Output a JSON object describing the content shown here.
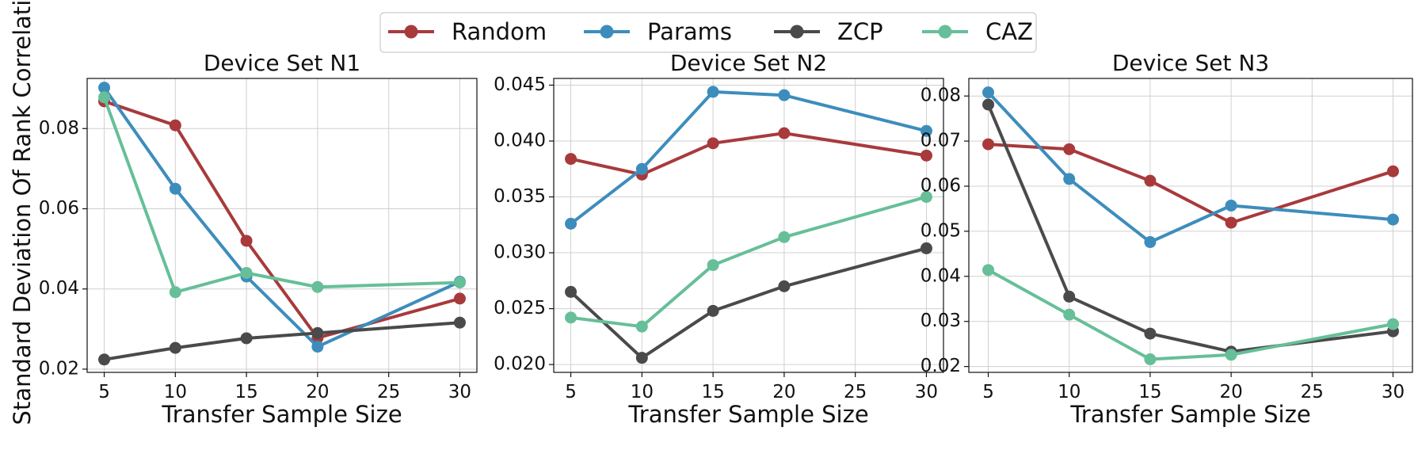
{
  "legend": [
    {
      "name": "Random",
      "color": "#a83a3c"
    },
    {
      "name": "Params",
      "color": "#3d8dbc"
    },
    {
      "name": "ZCP",
      "color": "#4a4a4a"
    },
    {
      "name": "CAZ",
      "color": "#66bf98"
    }
  ],
  "ylabel": "Standard Deviation Of Rank Correlation",
  "chart_data": [
    {
      "type": "line",
      "title": "Device Set N1",
      "xlabel": "Transfer Sample Size",
      "ylabel": "Standard Deviation Of Rank Correlation",
      "x": [
        5,
        10,
        15,
        20,
        30
      ],
      "xlim": [
        3.8,
        31.2
      ],
      "xticks": [
        5,
        10,
        15,
        20,
        25,
        30
      ],
      "ylim": [
        0.0192,
        0.0925
      ],
      "yticks": [
        "0.02",
        "0.04",
        "0.06",
        "0.08"
      ],
      "grid": true,
      "series": [
        {
          "name": "Random",
          "color": "#a83a3c",
          "values": [
            0.0868,
            0.0808,
            0.052,
            0.0278,
            0.0376
          ]
        },
        {
          "name": "Params",
          "color": "#3d8dbc",
          "values": [
            0.0902,
            0.065,
            0.0431,
            0.0256,
            0.0418
          ]
        },
        {
          "name": "ZCP",
          "color": "#4a4a4a",
          "values": [
            0.0224,
            0.0253,
            0.0277,
            0.029,
            0.0316
          ]
        },
        {
          "name": "CAZ",
          "color": "#66bf98",
          "values": [
            0.0878,
            0.0392,
            0.044,
            0.0405,
            0.0416
          ]
        }
      ]
    },
    {
      "type": "line",
      "title": "Device Set N2",
      "xlabel": "Transfer Sample Size",
      "ylabel": "",
      "x": [
        5,
        10,
        15,
        20,
        30
      ],
      "xlim": [
        3.8,
        31.2
      ],
      "xticks": [
        5,
        10,
        15,
        20,
        25,
        30
      ],
      "ylim": [
        0.0193,
        0.0456
      ],
      "yticks": [
        "0.020",
        "0.025",
        "0.030",
        "0.035",
        "0.040",
        "0.045"
      ],
      "grid": true,
      "series": [
        {
          "name": "Random",
          "color": "#a83a3c",
          "values": [
            0.0384,
            0.037,
            0.0398,
            0.0407,
            0.0387
          ]
        },
        {
          "name": "Params",
          "color": "#3d8dbc",
          "values": [
            0.0326,
            0.0375,
            0.0444,
            0.0441,
            0.0409
          ]
        },
        {
          "name": "ZCP",
          "color": "#4a4a4a",
          "values": [
            0.0265,
            0.0206,
            0.0248,
            0.027,
            0.0304
          ]
        },
        {
          "name": "CAZ",
          "color": "#66bf98",
          "values": [
            0.0242,
            0.0234,
            0.0289,
            0.0314,
            0.035
          ]
        }
      ]
    },
    {
      "type": "line",
      "title": "Device Set N3",
      "xlabel": "Transfer Sample Size",
      "ylabel": "",
      "x": [
        5,
        10,
        15,
        20,
        30
      ],
      "xlim": [
        3.8,
        31.2
      ],
      "xticks": [
        5,
        10,
        15,
        20,
        25,
        30
      ],
      "ylim": [
        0.0187,
        0.0839
      ],
      "yticks": [
        "0.02",
        "0.03",
        "0.04",
        "0.05",
        "0.06",
        "0.07",
        "0.08"
      ],
      "grid": true,
      "series": [
        {
          "name": "Random",
          "color": "#a83a3c",
          "values": [
            0.0693,
            0.0682,
            0.0612,
            0.0519,
            0.0633
          ]
        },
        {
          "name": "Params",
          "color": "#3d8dbc",
          "values": [
            0.0808,
            0.0616,
            0.0476,
            0.0557,
            0.0526
          ]
        },
        {
          "name": "ZCP",
          "color": "#4a4a4a",
          "values": [
            0.0781,
            0.0355,
            0.0273,
            0.0233,
            0.0278
          ]
        },
        {
          "name": "CAZ",
          "color": "#66bf98",
          "values": [
            0.0414,
            0.0315,
            0.0216,
            0.0226,
            0.0294
          ]
        }
      ]
    }
  ]
}
